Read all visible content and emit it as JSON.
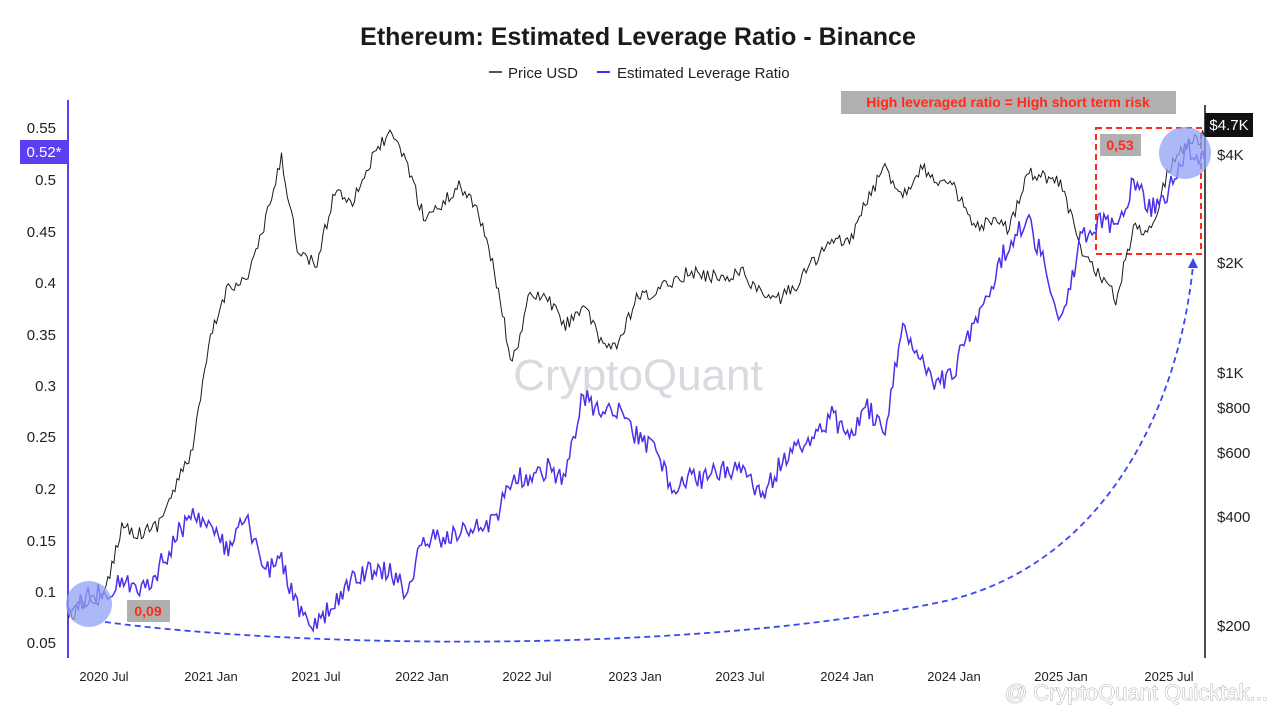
{
  "chart_data": {
    "type": "line",
    "title": "Ethereum: Estimated Leverage Ratio - Binance",
    "legend_placement": "top-center",
    "grid": false,
    "x": {
      "ticks": [
        "2020 Jul",
        "2021 Jan",
        "2021 Jul",
        "2022 Jan",
        "2022 Jul",
        "2023 Jan",
        "2023 Jul",
        "2024 Jan",
        "2024 Jan",
        "2025 Jan",
        "2025 Jul"
      ]
    },
    "y_left": {
      "ticks": [
        "0.55",
        "0.5",
        "0.45",
        "0.4",
        "0.35",
        "0.3",
        "0.25",
        "0.2",
        "0.15",
        "0.1",
        "0.05"
      ],
      "ylim": [
        0.05,
        0.55
      ],
      "current_badge": "0.52*",
      "color": "#5b3ff2"
    },
    "y_right": {
      "scale": "log",
      "ticks": [
        "$4K",
        "$2K",
        "$1K",
        "$800",
        "$600",
        "$400",
        "$200"
      ],
      "current_badge": "$4.7K",
      "color": "#111111"
    },
    "series": [
      {
        "name": "Price USD",
        "axis": "right",
        "color": "#1a1a1a",
        "points": [
          [
            "2020-05",
            210
          ],
          [
            "2020-06",
            235
          ],
          [
            "2020-07",
            240
          ],
          [
            "2020-08",
            380
          ],
          [
            "2020-09",
            360
          ],
          [
            "2020-10",
            380
          ],
          [
            "2020-11",
            480
          ],
          [
            "2020-12",
            620
          ],
          [
            "2021-01",
            1250
          ],
          [
            "2021-02",
            1750
          ],
          [
            "2021-03",
            1800
          ],
          [
            "2021-04",
            2500
          ],
          [
            "2021-05",
            3900
          ],
          [
            "2021-06",
            2100
          ],
          [
            "2021-07",
            2000
          ],
          [
            "2021-08",
            3200
          ],
          [
            "2021-09",
            3000
          ],
          [
            "2021-10",
            3800
          ],
          [
            "2021-11",
            4600
          ],
          [
            "2021-12",
            3900
          ],
          [
            "2022-01",
            2700
          ],
          [
            "2022-02",
            2900
          ],
          [
            "2022-03",
            3300
          ],
          [
            "2022-04",
            2900
          ],
          [
            "2022-05",
            1900
          ],
          [
            "2022-06",
            1050
          ],
          [
            "2022-07",
            1650
          ],
          [
            "2022-08",
            1600
          ],
          [
            "2022-09",
            1350
          ],
          [
            "2022-10",
            1550
          ],
          [
            "2022-11",
            1200
          ],
          [
            "2022-12",
            1200
          ],
          [
            "2023-01",
            1600
          ],
          [
            "2023-02",
            1650
          ],
          [
            "2023-03",
            1800
          ],
          [
            "2023-04",
            1900
          ],
          [
            "2023-05",
            1850
          ],
          [
            "2023-06",
            1850
          ],
          [
            "2023-07",
            1900
          ],
          [
            "2023-08",
            1650
          ],
          [
            "2023-09",
            1600
          ],
          [
            "2023-10",
            1750
          ],
          [
            "2023-11",
            2050
          ],
          [
            "2023-12",
            2300
          ],
          [
            "2024-01",
            2300
          ],
          [
            "2024-02",
            3000
          ],
          [
            "2024-03",
            3700
          ],
          [
            "2024-04",
            3100
          ],
          [
            "2024-05",
            3700
          ],
          [
            "2024-06",
            3400
          ],
          [
            "2024-07",
            3200
          ],
          [
            "2024-08",
            2500
          ],
          [
            "2024-09",
            2600
          ],
          [
            "2024-10",
            2500
          ],
          [
            "2024-11",
            3600
          ],
          [
            "2024-12",
            3500
          ],
          [
            "2025-01",
            3300
          ],
          [
            "2025-02",
            2200
          ],
          [
            "2025-03",
            1900
          ],
          [
            "2025-04",
            1600
          ],
          [
            "2025-05",
            2500
          ],
          [
            "2025-06",
            2500
          ],
          [
            "2025-07",
            3700
          ],
          [
            "2025-08",
            4300
          ],
          [
            "2025-09",
            4500
          ]
        ]
      },
      {
        "name": "Estimated Leverage Ratio",
        "axis": "left",
        "color": "#4a30e8",
        "points": [
          [
            "2020-05",
            0.085
          ],
          [
            "2020-06",
            0.095
          ],
          [
            "2020-07",
            0.1
          ],
          [
            "2020-08",
            0.11
          ],
          [
            "2020-09",
            0.1
          ],
          [
            "2020-10",
            0.12
          ],
          [
            "2020-11",
            0.15
          ],
          [
            "2020-12",
            0.18
          ],
          [
            "2021-01",
            0.16
          ],
          [
            "2021-02",
            0.14
          ],
          [
            "2021-03",
            0.17
          ],
          [
            "2021-04",
            0.12
          ],
          [
            "2021-05",
            0.13
          ],
          [
            "2021-06",
            0.08
          ],
          [
            "2021-07",
            0.065
          ],
          [
            "2021-08",
            0.09
          ],
          [
            "2021-09",
            0.11
          ],
          [
            "2021-10",
            0.12
          ],
          [
            "2021-11",
            0.12
          ],
          [
            "2021-12",
            0.1
          ],
          [
            "2022-01",
            0.15
          ],
          [
            "2022-02",
            0.15
          ],
          [
            "2022-03",
            0.16
          ],
          [
            "2022-04",
            0.16
          ],
          [
            "2022-05",
            0.17
          ],
          [
            "2022-06",
            0.21
          ],
          [
            "2022-07",
            0.21
          ],
          [
            "2022-08",
            0.22
          ],
          [
            "2022-09",
            0.21
          ],
          [
            "2022-10",
            0.29
          ],
          [
            "2022-11",
            0.27
          ],
          [
            "2022-12",
            0.28
          ],
          [
            "2023-01",
            0.25
          ],
          [
            "2023-02",
            0.24
          ],
          [
            "2023-03",
            0.2
          ],
          [
            "2023-04",
            0.21
          ],
          [
            "2023-05",
            0.21
          ],
          [
            "2023-06",
            0.22
          ],
          [
            "2023-07",
            0.22
          ],
          [
            "2023-08",
            0.19
          ],
          [
            "2023-09",
            0.22
          ],
          [
            "2023-10",
            0.24
          ],
          [
            "2023-11",
            0.25
          ],
          [
            "2023-12",
            0.27
          ],
          [
            "2024-01",
            0.25
          ],
          [
            "2024-02",
            0.28
          ],
          [
            "2024-03",
            0.25
          ],
          [
            "2024-04",
            0.36
          ],
          [
            "2024-05",
            0.33
          ],
          [
            "2024-06",
            0.3
          ],
          [
            "2024-07",
            0.32
          ],
          [
            "2024-08",
            0.36
          ],
          [
            "2024-09",
            0.4
          ],
          [
            "2024-10",
            0.44
          ],
          [
            "2024-11",
            0.46
          ],
          [
            "2024-12",
            0.42
          ],
          [
            "2025-01",
            0.36
          ],
          [
            "2025-02",
            0.44
          ],
          [
            "2025-03",
            0.46
          ],
          [
            "2025-04",
            0.45
          ],
          [
            "2025-05",
            0.5
          ],
          [
            "2025-06",
            0.47
          ],
          [
            "2025-07",
            0.49
          ],
          [
            "2025-08",
            0.53
          ],
          [
            "2025-09",
            0.52
          ]
        ]
      }
    ],
    "annotations": {
      "risk_label": "High leveraged ratio = High short term risk",
      "start_value": "0,09",
      "end_value": "0,53"
    },
    "watermark": "CryptoQuant",
    "credit": "@ CryptoQuant Quicktak..."
  }
}
